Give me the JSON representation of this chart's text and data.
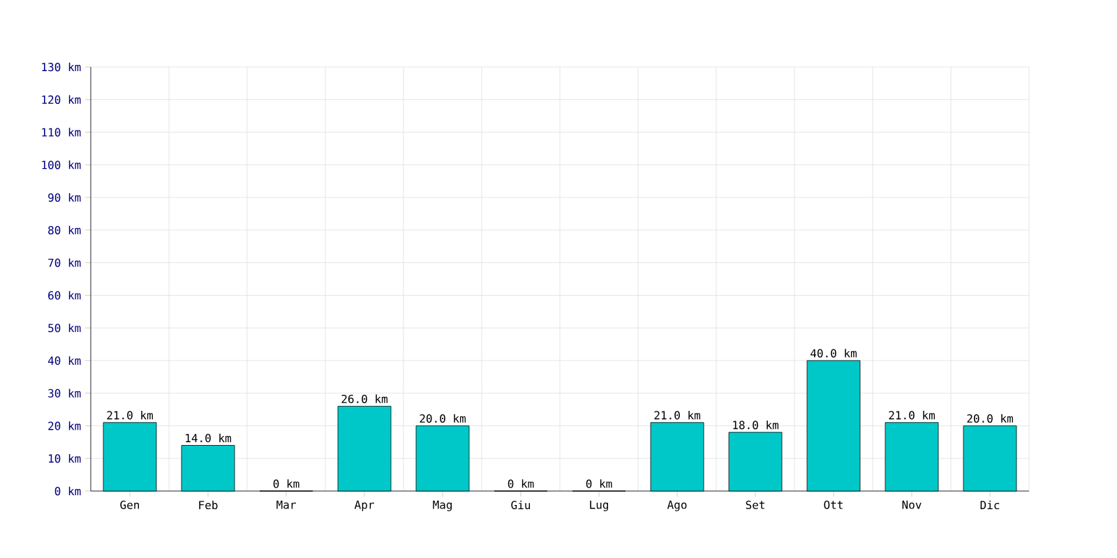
{
  "chart_data": {
    "type": "bar",
    "categories": [
      "Gen",
      "Feb",
      "Mar",
      "Apr",
      "Mag",
      "Giu",
      "Lug",
      "Ago",
      "Set",
      "Ott",
      "Nov",
      "Dic"
    ],
    "values": [
      21,
      14,
      0,
      26,
      20,
      0,
      0,
      21,
      18,
      40,
      21,
      20
    ],
    "value_labels": [
      "21.0 km",
      "14.0 km",
      "0 km",
      "26.0 km",
      "20.0 km",
      "0 km",
      "0 km",
      "21.0 km",
      "18.0 km",
      "40.0 km",
      "21.0 km",
      "20.0 km"
    ],
    "color": "#00c8c8",
    "ylim": [
      0,
      130
    ],
    "yticks": [
      {
        "value": 0,
        "label": "0 km"
      },
      {
        "value": 10,
        "label": "10 km"
      },
      {
        "value": 20,
        "label": "20 km"
      },
      {
        "value": 30,
        "label": "30 km"
      },
      {
        "value": 40,
        "label": "40 km"
      },
      {
        "value": 50,
        "label": "50 km"
      },
      {
        "value": 60,
        "label": "60 km"
      },
      {
        "value": 70,
        "label": "70 km"
      },
      {
        "value": 80,
        "label": "80 km"
      },
      {
        "value": 90,
        "label": "90 km"
      },
      {
        "value": 100,
        "label": "100 km"
      },
      {
        "value": 110,
        "label": "110 km"
      },
      {
        "value": 120,
        "label": "120 km"
      },
      {
        "value": 130,
        "label": "130 km"
      }
    ],
    "grid": true
  }
}
